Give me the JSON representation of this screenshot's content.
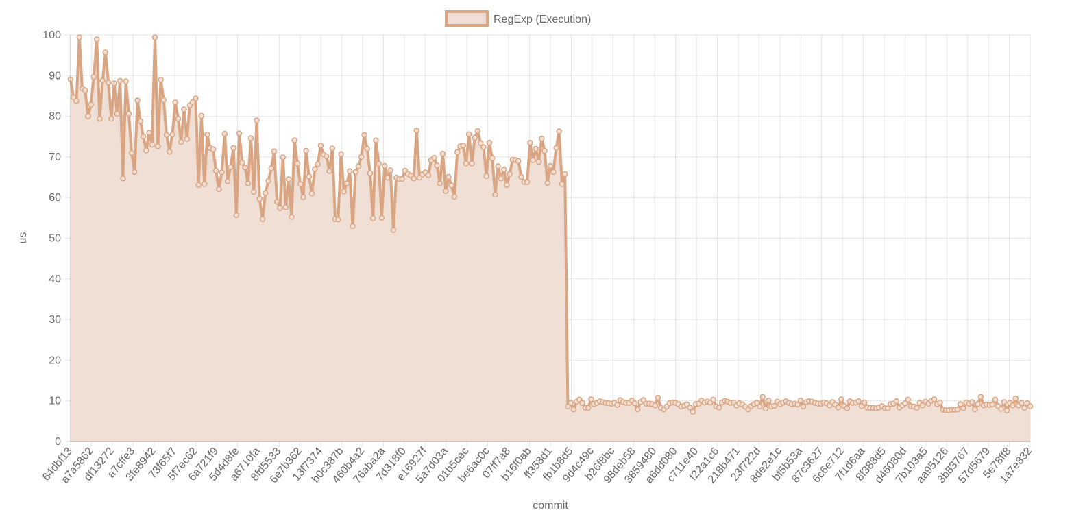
{
  "chart_data": {
    "type": "line",
    "fill": true,
    "xlabel": "commit",
    "ylabel": "us",
    "ylim": [
      0,
      100
    ],
    "yticks": [
      0,
      10,
      20,
      30,
      40,
      50,
      60,
      70,
      80,
      90,
      100
    ],
    "grid": true,
    "legend_position": "top-center",
    "x_tick_labels": [
      "64dbf13",
      "a7a5862",
      "df13272",
      "a7cffe3",
      "3fe8942",
      "73f65f7",
      "5f7ec62",
      "6a721f9",
      "5d4d8fe",
      "a6710fa",
      "8fd5533",
      "6e7b362",
      "13f7374",
      "b0c387b",
      "460b4a2",
      "76aba2a",
      "7d318f0",
      "e16927f",
      "5a7d03a",
      "01b5cec",
      "be6ac0c",
      "07ff7a8",
      "b16f0ab",
      "ff358d1",
      "fb1b8d5",
      "9d4c49c",
      "b26f8bc",
      "98deb58",
      "3859480",
      "a6dd080",
      "c711e40",
      "f22a1c6",
      "218b471",
      "23f722d",
      "8de2e1c",
      "bf5b53a",
      "87c3627",
      "6c6e712",
      "7f1d6aa",
      "8f388d5",
      "d46080d",
      "7b103a5",
      "aa95126",
      "3b83767",
      "57d5679",
      "5e78ff8",
      "1a7e832"
    ],
    "series": [
      {
        "name": "RegExp (Execution)",
        "color": "#d9a583",
        "fill_color": "#f0dfd4",
        "values": [
          89.1,
          84.7,
          83.8,
          99.4,
          86.8,
          86.4,
          80,
          82.9,
          89.7,
          98.9,
          79.4,
          88.8,
          95.7,
          88.3,
          79.4,
          88.1,
          80.6,
          88.7,
          64.7,
          88.6,
          80.6,
          71,
          66.3,
          83.9,
          78.8,
          75,
          71.6,
          76,
          73,
          99.4,
          72.6,
          89,
          84,
          75.4,
          71.3,
          75.5,
          83.4,
          79.4,
          73.7,
          81.7,
          74.4,
          82.7,
          83.5,
          84.4,
          63.1,
          80.1,
          63.3,
          75.5,
          72.2,
          71.9,
          66.6,
          62.1,
          66.2,
          75.7,
          64,
          67.5,
          72.2,
          55.7,
          75.8,
          68.6,
          67.4,
          63.5,
          74.6,
          61.4,
          79,
          59.7,
          54.7,
          61.1,
          64.1,
          67.2,
          71.4,
          59,
          57.4,
          69.9,
          57.6,
          64.5,
          55.2,
          74.1,
          68.4,
          63.3,
          60.1,
          71.5,
          65.2,
          61,
          67,
          68.2,
          72.8,
          70.6,
          70.2,
          66.5,
          72.1,
          54.7,
          54.6,
          70.7,
          61.5,
          63.5,
          66.5,
          53,
          66.3,
          67.7,
          70,
          75.4,
          72,
          66,
          54.9,
          74.1,
          68.3,
          55,
          67.8,
          64.9,
          66.7,
          52,
          64.9,
          64.6,
          64.6,
          66.6,
          65.8,
          65.4,
          64.7,
          76.5,
          64.9,
          65.7,
          66.2,
          65.5,
          69.2,
          69.8,
          67.9,
          63.5,
          70.8,
          61.6,
          65.1,
          63,
          60.2,
          71.2,
          72.6,
          72.8,
          68.4,
          75.6,
          68.4,
          74.7,
          76.4,
          73.4,
          72.4,
          65.3,
          73.5,
          69.7,
          60.7,
          67.7,
          64.7,
          66.9,
          63.1,
          65.8,
          69.3,
          69.2,
          69,
          65.1,
          63.8,
          63.8,
          73.5,
          69.2,
          72,
          68.8,
          74.5,
          71.5,
          63.6,
          67.8,
          66.3,
          72.2,
          76.3,
          63.3,
          65.8,
          8.6,
          9.5,
          7.9,
          9.8,
          10.3,
          9.5,
          8.3,
          8.3,
          10.4,
          9.2,
          9.5,
          9.9,
          9.7,
          9.5,
          9.4,
          9.3,
          9.5,
          9,
          10.2,
          9.7,
          9.5,
          9.5,
          10.1,
          9.4,
          7.9,
          9.7,
          10.2,
          9.3,
          9.3,
          9.2,
          8.9,
          10.8,
          8.3,
          7.9,
          8.6,
          9.4,
          9.6,
          9.5,
          9.2,
          8.6,
          8.8,
          9.1,
          8.4,
          7.3,
          9.2,
          9.3,
          10.1,
          9.6,
          9.8,
          9.6,
          10.3,
          8.6,
          8.4,
          9.6,
          10,
          9.8,
          9.5,
          9.6,
          8.9,
          9.4,
          9.1,
          8.6,
          7.9,
          8.7,
          9.2,
          9.5,
          8.6,
          11,
          8.1,
          10.1,
          8.6,
          8.8,
          9.8,
          9.2,
          9.6,
          9.9,
          9.5,
          9.2,
          9.3,
          9.1,
          10.1,
          8.6,
          9.7,
          9.9,
          9.8,
          9.5,
          9.3,
          9.3,
          9.6,
          9.4,
          8.9,
          9.7,
          9.1,
          8.4,
          10.4,
          8.8,
          8.2,
          9.9,
          9.5,
          9.6,
          9.9,
          8.7,
          9.6,
          8.4,
          8.3,
          8.3,
          8.2,
          8.4,
          8.7,
          8.2,
          8.2,
          9.2,
          9.3,
          9.9,
          8.4,
          8.9,
          9.4,
          10.3,
          8.7,
          8.6,
          8.3,
          9.5,
          8.9,
          9.8,
          9.3,
          10,
          10.4,
          9.2,
          9.6,
          7.8,
          7.7,
          7.7,
          7.8,
          7.8,
          7.9,
          9.2,
          8.2,
          9.6,
          9.3,
          9.7,
          7.9,
          9.2,
          11,
          8.9,
          9.1,
          9,
          9.1,
          10.3,
          8.7,
          8,
          9.7,
          7.6,
          9.5,
          8.9,
          10.6,
          8.9,
          9.5,
          8.3,
          9.4,
          8.7
        ]
      }
    ]
  }
}
